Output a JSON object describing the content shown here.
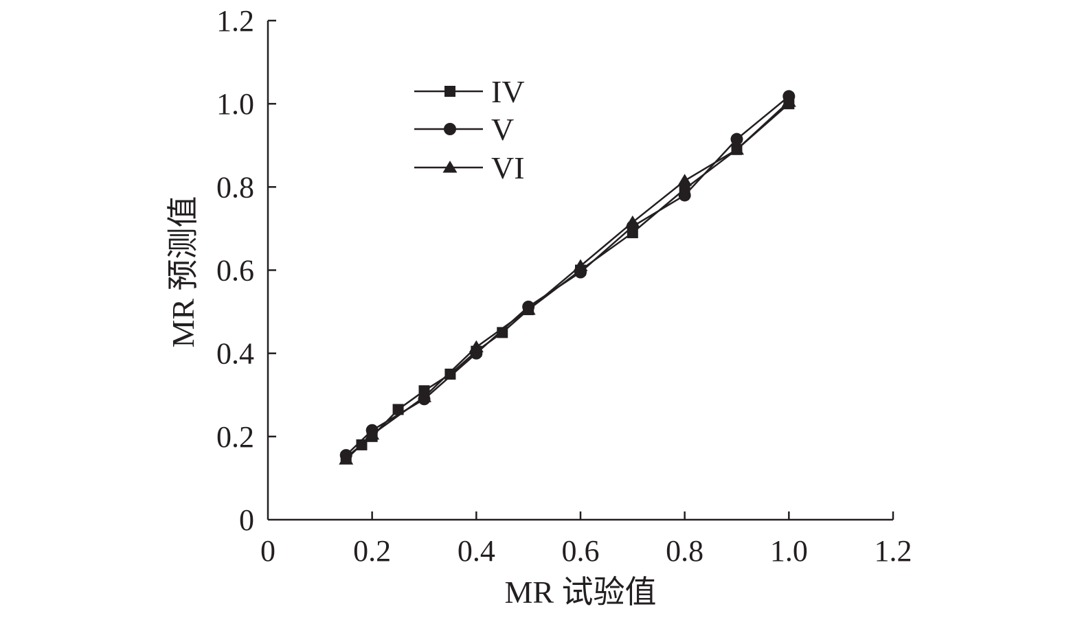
{
  "chart_data": {
    "type": "line",
    "xlabel": "MR 试验值",
    "ylabel": "MR 预测值",
    "xlim": [
      0,
      1.2
    ],
    "ylim": [
      0,
      1.2
    ],
    "x_ticks": [
      0,
      0.2,
      0.4,
      0.6,
      0.8,
      1.0,
      1.2
    ],
    "x_tick_labels": [
      "0",
      "0.2",
      "0.4",
      "0.6",
      "0.8",
      "1.0",
      "1.2"
    ],
    "y_ticks": [
      0,
      0.2,
      0.4,
      0.6,
      0.8,
      1.0,
      1.2
    ],
    "y_tick_labels": [
      "0",
      "0.2",
      "0.4",
      "0.6",
      "0.8",
      "1.0",
      "1.2"
    ],
    "grid": false,
    "legend_position": "top-left",
    "series": [
      {
        "name": "IV",
        "marker": "square",
        "x": [
          0.15,
          0.18,
          0.2,
          0.25,
          0.3,
          0.35,
          0.4,
          0.45,
          0.5,
          0.6,
          0.7,
          0.8,
          0.9,
          1.0
        ],
        "y": [
          0.15,
          0.18,
          0.2,
          0.265,
          0.31,
          0.35,
          0.405,
          0.45,
          0.505,
          0.6,
          0.69,
          0.795,
          0.89,
          1.0
        ]
      },
      {
        "name": "V",
        "marker": "circle",
        "x": [
          0.15,
          0.2,
          0.3,
          0.4,
          0.5,
          0.6,
          0.7,
          0.8,
          0.9,
          1.0
        ],
        "y": [
          0.155,
          0.215,
          0.29,
          0.4,
          0.512,
          0.595,
          0.705,
          0.78,
          0.915,
          1.018
        ]
      },
      {
        "name": "VI",
        "marker": "triangle",
        "x": [
          0.15,
          0.2,
          0.3,
          0.4,
          0.5,
          0.6,
          0.7,
          0.8,
          0.9,
          1.0
        ],
        "y": [
          0.145,
          0.205,
          0.295,
          0.415,
          0.505,
          0.61,
          0.715,
          0.815,
          0.89,
          1.005
        ]
      }
    ]
  }
}
